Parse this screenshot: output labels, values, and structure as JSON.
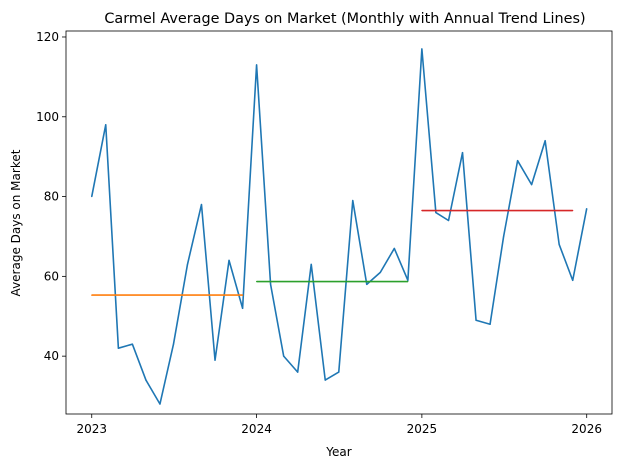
{
  "chart_data": {
    "type": "line",
    "title": "Carmel Average Days on Market (Monthly with Annual Trend Lines)",
    "xlabel": "Year",
    "ylabel": "Average Days on Market",
    "xlim": [
      "2022-11-05",
      "2026-02-26"
    ],
    "ylim": [
      25.5,
      121.5
    ],
    "x_ticks": [
      "2023",
      "2024",
      "2025",
      "2026"
    ],
    "y_ticks": [
      40,
      60,
      80,
      100,
      120
    ],
    "grid": false,
    "series": [
      {
        "color": "#1f77b4",
        "dates": [
          "2023-01",
          "2023-02",
          "2023-03",
          "2023-04",
          "2023-05",
          "2023-06",
          "2023-07",
          "2023-08",
          "2023-09",
          "2023-10",
          "2023-11",
          "2023-12",
          "2024-01",
          "2024-02",
          "2024-03",
          "2024-04",
          "2024-05",
          "2024-06",
          "2024-07",
          "2024-08",
          "2024-09",
          "2024-10",
          "2024-11",
          "2024-12",
          "2025-01",
          "2025-02",
          "2025-03",
          "2025-04",
          "2025-05",
          "2025-06",
          "2025-07",
          "2025-08",
          "2025-09",
          "2025-10",
          "2025-11",
          "2025-12",
          "2026-01"
        ],
        "values": [
          80,
          98,
          42,
          43,
          34,
          28,
          43,
          63,
          78,
          39,
          64,
          52,
          113,
          58,
          40,
          36,
          63,
          34,
          36,
          79,
          58,
          61,
          67,
          59,
          117,
          76,
          74,
          91,
          49,
          48,
          70,
          89,
          83,
          94,
          68,
          59,
          77
        ]
      },
      {
        "color": "#ff7f0e",
        "dates": [
          "2023-01",
          "2023-12"
        ],
        "values": [
          55.3,
          55.3
        ]
      },
      {
        "color": "#2ca02c",
        "dates": [
          "2024-01",
          "2024-12"
        ],
        "values": [
          58.7,
          58.7
        ]
      },
      {
        "color": "#d62728",
        "dates": [
          "2025-01",
          "2025-12"
        ],
        "values": [
          76.5,
          76.5
        ]
      }
    ]
  }
}
